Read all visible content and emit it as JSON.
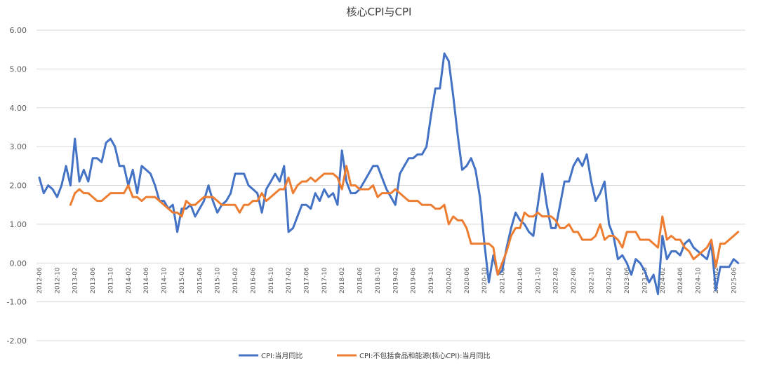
{
  "chart_data": {
    "type": "line",
    "title": "核心CPI与CPI",
    "ylim": [
      -2.0,
      6.0
    ],
    "y_ticks": [
      "6.00",
      "5.00",
      "4.00",
      "3.00",
      "2.00",
      "1.00",
      "0.00",
      "-1.00",
      "-2.00"
    ],
    "x_tick_labels": [
      "2012-06",
      "2012-10",
      "2013-02",
      "2013-06",
      "2013-10",
      "2014-02",
      "2014-06",
      "2014-10",
      "2015-02",
      "2015-06",
      "2015-10",
      "2016-02",
      "2016-06",
      "2016-10",
      "2017-02",
      "2017-06",
      "2017-10",
      "2018-02",
      "2018-06",
      "2018-10",
      "2019-02",
      "2019-06",
      "2019-10",
      "2020-02",
      "2020-06",
      "2020-10",
      "2021-02",
      "2021-06",
      "2021-10",
      "2022-02",
      "2022-06",
      "2022-10",
      "2023-02",
      "2023-06",
      "2023-10",
      "2024-02",
      "2024-06",
      "2024-10",
      "2025-02",
      "2025-06"
    ],
    "grid": "horizontal",
    "legend_position": "bottom",
    "series": [
      {
        "name": "CPI:当月同比",
        "color": "#4472c4",
        "start": "2012-06",
        "values": [
          2.2,
          1.8,
          2.0,
          1.9,
          1.7,
          2.0,
          2.5,
          2.0,
          3.2,
          2.1,
          2.4,
          2.1,
          2.7,
          2.7,
          2.6,
          3.1,
          3.2,
          3.0,
          2.5,
          2.5,
          2.0,
          2.4,
          1.8,
          2.5,
          2.4,
          2.3,
          2.0,
          1.6,
          1.6,
          1.4,
          1.5,
          0.8,
          1.4,
          1.4,
          1.5,
          1.2,
          1.4,
          1.6,
          2.0,
          1.6,
          1.3,
          1.5,
          1.6,
          1.8,
          2.3,
          2.3,
          2.3,
          2.0,
          1.9,
          1.8,
          1.3,
          1.9,
          2.1,
          2.3,
          2.1,
          2.5,
          0.8,
          0.9,
          1.2,
          1.5,
          1.5,
          1.4,
          1.8,
          1.6,
          1.9,
          1.7,
          1.8,
          1.5,
          2.9,
          2.1,
          1.8,
          1.8,
          1.9,
          2.1,
          2.3,
          2.5,
          2.5,
          2.2,
          1.9,
          1.7,
          1.5,
          2.3,
          2.5,
          2.7,
          2.7,
          2.8,
          2.8,
          3.0,
          3.8,
          4.5,
          4.5,
          5.4,
          5.2,
          4.3,
          3.3,
          2.4,
          2.5,
          2.7,
          2.4,
          1.7,
          0.5,
          -0.5,
          0.2,
          -0.3,
          -0.2,
          0.4,
          0.9,
          1.3,
          1.1,
          1.0,
          0.8,
          0.7,
          1.5,
          2.3,
          1.5,
          0.9,
          0.9,
          1.5,
          2.1,
          2.1,
          2.5,
          2.7,
          2.5,
          2.8,
          2.1,
          1.6,
          1.8,
          2.1,
          1.0,
          0.7,
          0.1,
          0.2,
          0.0,
          -0.3,
          0.1,
          0.0,
          -0.2,
          -0.5,
          -0.3,
          -0.8,
          0.7,
          0.1,
          0.3,
          0.3,
          0.2,
          0.5,
          0.6,
          0.4,
          0.3,
          0.2,
          0.1,
          0.5,
          -0.7,
          -0.1,
          -0.1,
          -0.1,
          0.1,
          0.0
        ]
      },
      {
        "name": "CPI:不包括食品和能源(核心CPI):当月同比",
        "color": "#ed7d31",
        "start": "2013-01",
        "values": [
          1.5,
          1.8,
          1.9,
          1.8,
          1.8,
          1.7,
          1.6,
          1.6,
          1.7,
          1.8,
          1.8,
          1.8,
          1.8,
          2.0,
          1.7,
          1.7,
          1.6,
          1.7,
          1.7,
          1.7,
          1.6,
          1.5,
          1.4,
          1.3,
          1.3,
          1.2,
          1.6,
          1.5,
          1.5,
          1.6,
          1.7,
          1.7,
          1.7,
          1.6,
          1.5,
          1.5,
          1.5,
          1.5,
          1.3,
          1.5,
          1.5,
          1.6,
          1.6,
          1.8,
          1.6,
          1.7,
          1.8,
          1.9,
          1.9,
          2.2,
          1.8,
          2.0,
          2.1,
          2.1,
          2.2,
          2.1,
          2.2,
          2.3,
          2.3,
          2.3,
          2.2,
          1.9,
          2.5,
          2.0,
          2.0,
          1.9,
          1.9,
          1.9,
          2.0,
          1.7,
          1.8,
          1.8,
          1.8,
          1.9,
          1.8,
          1.7,
          1.6,
          1.6,
          1.6,
          1.5,
          1.5,
          1.5,
          1.4,
          1.4,
          1.5,
          1.0,
          1.2,
          1.1,
          1.1,
          0.9,
          0.5,
          0.5,
          0.5,
          0.5,
          0.5,
          0.4,
          -0.3,
          0.0,
          0.3,
          0.7,
          0.9,
          0.9,
          1.3,
          1.2,
          1.2,
          1.3,
          1.2,
          1.2,
          1.2,
          1.1,
          0.9,
          0.9,
          1.0,
          0.8,
          0.8,
          0.6,
          0.6,
          0.6,
          0.7,
          1.0,
          0.6,
          0.7,
          0.7,
          0.6,
          0.4,
          0.8,
          0.8,
          0.8,
          0.6,
          0.6,
          0.6,
          0.5,
          0.4,
          1.2,
          0.6,
          0.7,
          0.6,
          0.6,
          0.4,
          0.3,
          0.1,
          0.2,
          0.3,
          0.4,
          0.6,
          -0.1,
          0.5,
          0.5,
          0.6,
          0.7,
          0.8
        ]
      }
    ]
  }
}
